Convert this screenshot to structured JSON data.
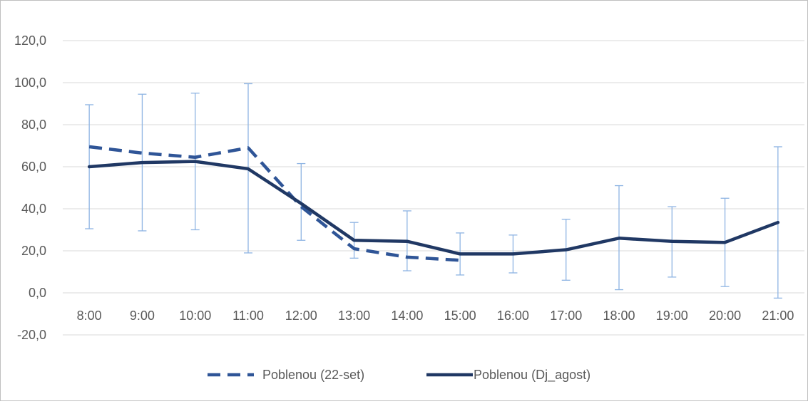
{
  "chart_data": {
    "type": "line",
    "title": "",
    "xlabel": "",
    "ylabel": "",
    "categories": [
      "8:00",
      "9:00",
      "10:00",
      "11:00",
      "12:00",
      "13:00",
      "14:00",
      "15:00",
      "16:00",
      "17:00",
      "18:00",
      "19:00",
      "20:00",
      "21:00"
    ],
    "ylim": [
      -20,
      120
    ],
    "y_ticks": [
      -20,
      0,
      20,
      40,
      60,
      80,
      100,
      120
    ],
    "y_tick_labels": [
      "-20,0",
      "0,0",
      "20,0",
      "40,0",
      "60,0",
      "80,0",
      "100,0",
      "120,0"
    ],
    "grid": true,
    "legend_position": "bottom",
    "series": [
      {
        "name": "Poblenou  (22-set)",
        "style": "dashed",
        "color": "#2f5597",
        "values": [
          69.5,
          66.5,
          64.5,
          69.0,
          41.0,
          21.0,
          17.0,
          15.5,
          null,
          null,
          null,
          null,
          null,
          null
        ]
      },
      {
        "name": "Poblenou (Dj_agost)",
        "style": "solid",
        "color": "#203864",
        "values": [
          60.0,
          62.0,
          62.5,
          59.0,
          42.5,
          25.0,
          24.5,
          18.5,
          18.5,
          20.5,
          26.0,
          24.5,
          24.0,
          33.5
        ],
        "error_low": [
          30.5,
          29.5,
          30.0,
          19.0,
          25.0,
          16.5,
          10.5,
          8.5,
          9.5,
          6.0,
          1.5,
          7.5,
          3.0,
          -2.5
        ],
        "error_high": [
          89.5,
          94.5,
          95.0,
          99.5,
          61.5,
          33.5,
          39.0,
          28.5,
          27.5,
          35.0,
          51.0,
          41.0,
          45.0,
          69.5
        ],
        "error_color": "#8eb4e3"
      }
    ]
  }
}
